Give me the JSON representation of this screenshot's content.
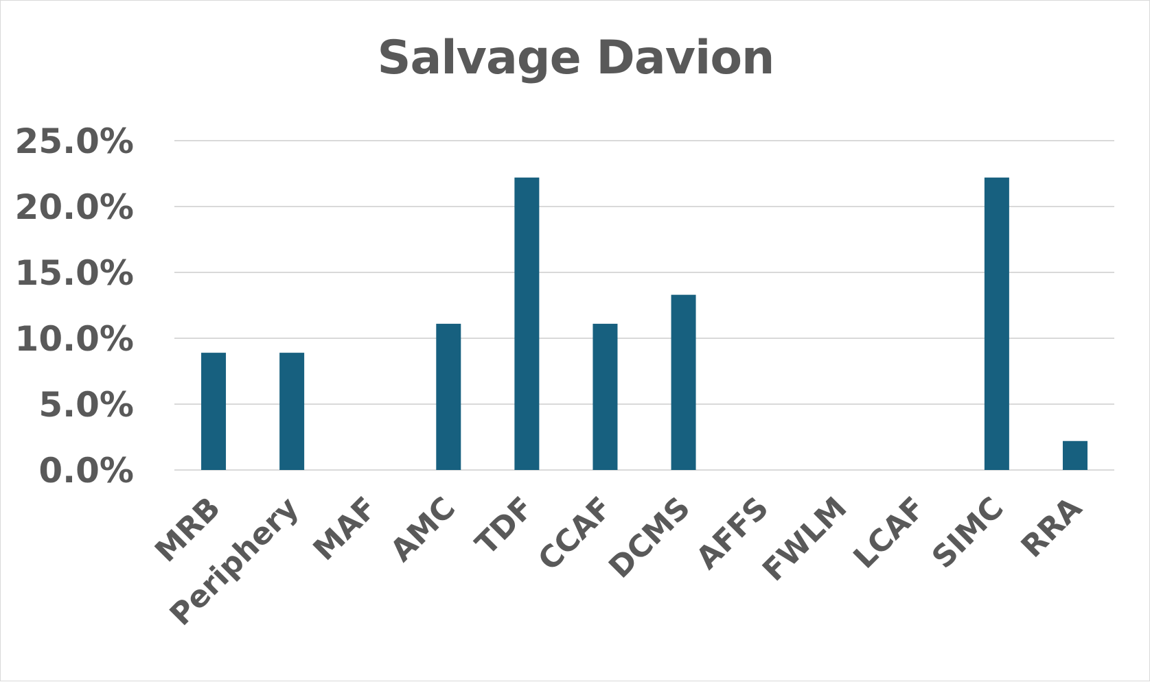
{
  "chart_data": {
    "type": "bar",
    "title": "Salvage Davion",
    "xlabel": "",
    "ylabel": "",
    "categories": [
      "MRB",
      "Periphery",
      "MAF",
      "AMC",
      "TDF",
      "CCAF",
      "DCMS",
      "AFFS",
      "FWLM",
      "LCAF",
      "SIMC",
      "RRA"
    ],
    "values": [
      8.9,
      8.9,
      0.0,
      11.1,
      22.2,
      11.1,
      13.3,
      0.0,
      0.0,
      0.0,
      22.2,
      2.2
    ],
    "ylim": [
      0,
      25
    ],
    "yticks": [
      0,
      5,
      10,
      15,
      20,
      25
    ],
    "ytick_labels": [
      "0.0%",
      "5.0%",
      "10.0%",
      "15.0%",
      "20.0%",
      "25.0%"
    ],
    "grid": true,
    "legend": "none",
    "bar_color": "#17607f"
  }
}
